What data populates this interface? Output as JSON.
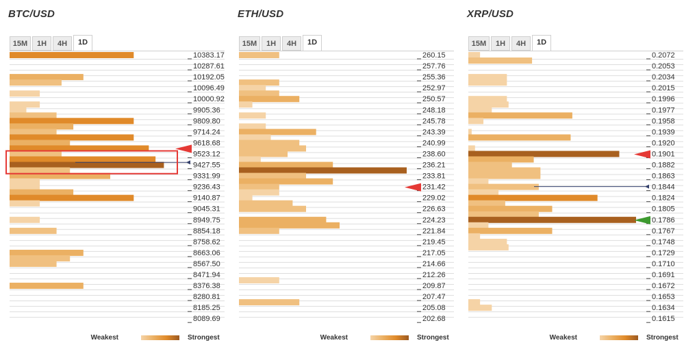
{
  "panels": [
    {
      "title": "BTC/USD",
      "tabs": [
        "15M",
        "1H",
        "4H",
        "1D"
      ],
      "active_tab": "1D",
      "legend": {
        "weakest": "Weakest",
        "strongest": "Strongest"
      }
    },
    {
      "title": "ETH/USD",
      "tabs": [
        "15M",
        "1H",
        "4H",
        "1D"
      ],
      "active_tab": "1D",
      "legend": {
        "weakest": "Weakest",
        "strongest": "Strongest"
      }
    },
    {
      "title": "XRP/USD",
      "tabs": [
        "15M",
        "1H",
        "4H",
        "1D"
      ],
      "active_tab": "1D",
      "legend": {
        "weakest": "Weakest",
        "strongest": "Strongest"
      }
    }
  ],
  "colors": {
    "weak": "#f5d3a6",
    "light": "#f0c080",
    "medium": "#ebb063",
    "strong": "#e08a2a",
    "strongest": "#a8601f",
    "grid": "#dddddd",
    "arrow_red": "#e53935",
    "arrow_green": "#3d9a2f",
    "highlight_box": "#e53935",
    "price_line": "#333f6b"
  },
  "chart_data": [
    {
      "type": "bar",
      "orientation": "horizontal",
      "title": "BTC/USD",
      "timeframe": "1D",
      "x_max": 10,
      "price_levels": [
        "10383.17",
        "10287.61",
        "10192.05",
        "10096.49",
        "10000.92",
        "9905.36",
        "9809.80",
        "9714.24",
        "9618.68",
        "9523.12",
        "9427.55",
        "9331.99",
        "9236.43",
        "9140.87",
        "9045.31",
        "8949.75",
        "8854.18",
        "8758.62",
        "8663.06",
        "8567.50",
        "8471.94",
        "8376.38",
        "8280.81",
        "8185.25",
        "8089.69"
      ],
      "bars": [
        {
          "level": 0,
          "value": 7.4,
          "strength": 4
        },
        {
          "level": 2,
          "value": 4.4,
          "strength": 3
        },
        {
          "level": 2.5,
          "value": 3.1,
          "strength": 2
        },
        {
          "level": 3.5,
          "value": 1.8,
          "strength": 1
        },
        {
          "level": 4.5,
          "value": 1.8,
          "strength": 1
        },
        {
          "level": 5,
          "value": 1.0,
          "strength": 1
        },
        {
          "level": 5.5,
          "value": 2.8,
          "strength": 2
        },
        {
          "level": 6,
          "value": 7.4,
          "strength": 4
        },
        {
          "level": 6.5,
          "value": 3.8,
          "strength": 3
        },
        {
          "level": 7,
          "value": 2.8,
          "strength": 2
        },
        {
          "level": 7.5,
          "value": 7.4,
          "strength": 4
        },
        {
          "level": 8,
          "value": 3.6,
          "strength": 3
        },
        {
          "level": 8.5,
          "value": 8.3,
          "strength": 4
        },
        {
          "level": 9,
          "value": 3.1,
          "strength": 2
        },
        {
          "level": 9.5,
          "value": 8.7,
          "strength": 4
        },
        {
          "level": 10,
          "value": 9.2,
          "strength": 5
        },
        {
          "level": 10.5,
          "value": 3.6,
          "strength": 2
        },
        {
          "level": 11,
          "value": 6.0,
          "strength": 3
        },
        {
          "level": 11.5,
          "value": 1.8,
          "strength": 1
        },
        {
          "level": 12,
          "value": 1.8,
          "strength": 1
        },
        {
          "level": 12.5,
          "value": 3.8,
          "strength": 3
        },
        {
          "level": 13,
          "value": 7.4,
          "strength": 4
        },
        {
          "level": 13.5,
          "value": 1.8,
          "strength": 1
        },
        {
          "level": 15,
          "value": 1.8,
          "strength": 1
        },
        {
          "level": 16,
          "value": 2.8,
          "strength": 2
        },
        {
          "level": 18,
          "value": 4.4,
          "strength": 3
        },
        {
          "level": 18.5,
          "value": 3.6,
          "strength": 2
        },
        {
          "level": 19,
          "value": 2.8,
          "strength": 2
        },
        {
          "level": 21,
          "value": 4.4,
          "strength": 3
        }
      ],
      "markers": [
        {
          "type": "arrow",
          "color": "red",
          "level": 8.5
        },
        {
          "type": "price_line",
          "level": 9.8
        },
        {
          "type": "highlight_box",
          "from_level": 9.25,
          "to_level": 10.7
        }
      ]
    },
    {
      "type": "bar",
      "orientation": "horizontal",
      "title": "ETH/USD",
      "timeframe": "1D",
      "x_max": 10,
      "price_levels": [
        "260.15",
        "257.76",
        "255.36",
        "252.97",
        "250.57",
        "248.18",
        "245.78",
        "243.39",
        "240.99",
        "238.60",
        "236.21",
        "233.81",
        "231.42",
        "229.02",
        "226.63",
        "224.23",
        "221.84",
        "219.45",
        "217.05",
        "214.66",
        "212.26",
        "209.87",
        "207.47",
        "205.08",
        "202.68"
      ],
      "bars": [
        {
          "level": 0,
          "value": 2.4,
          "strength": 2
        },
        {
          "level": 2.5,
          "value": 2.4,
          "strength": 2
        },
        {
          "level": 3,
          "value": 1.6,
          "strength": 1
        },
        {
          "level": 3.5,
          "value": 2.4,
          "strength": 2
        },
        {
          "level": 4,
          "value": 3.6,
          "strength": 3
        },
        {
          "level": 4.5,
          "value": 0.8,
          "strength": 1
        },
        {
          "level": 5.5,
          "value": 1.6,
          "strength": 1
        },
        {
          "level": 6.5,
          "value": 1.6,
          "strength": 1
        },
        {
          "level": 7,
          "value": 4.6,
          "strength": 3
        },
        {
          "level": 7.5,
          "value": 1.9,
          "strength": 1
        },
        {
          "level": 8,
          "value": 3.6,
          "strength": 2
        },
        {
          "level": 8.5,
          "value": 4.0,
          "strength": 2
        },
        {
          "level": 9,
          "value": 2.9,
          "strength": 2
        },
        {
          "level": 9.5,
          "value": 1.3,
          "strength": 1
        },
        {
          "level": 10,
          "value": 5.6,
          "strength": 3
        },
        {
          "level": 10.5,
          "value": 10.0,
          "strength": 5
        },
        {
          "level": 11,
          "value": 4.0,
          "strength": 2
        },
        {
          "level": 11.5,
          "value": 5.6,
          "strength": 3
        },
        {
          "level": 12,
          "value": 2.4,
          "strength": 2
        },
        {
          "level": 12.5,
          "value": 2.4,
          "strength": 1
        },
        {
          "level": 13,
          "value": 0.8,
          "strength": 1
        },
        {
          "level": 13.5,
          "value": 3.2,
          "strength": 2
        },
        {
          "level": 14,
          "value": 4.0,
          "strength": 2
        },
        {
          "level": 15,
          "value": 5.2,
          "strength": 3
        },
        {
          "level": 15.5,
          "value": 6.0,
          "strength": 3
        },
        {
          "level": 16,
          "value": 2.4,
          "strength": 2
        },
        {
          "level": 20.5,
          "value": 2.4,
          "strength": 1
        },
        {
          "level": 22.5,
          "value": 3.6,
          "strength": 2
        }
      ],
      "markers": [
        {
          "type": "arrow",
          "color": "red",
          "level": 12
        }
      ]
    },
    {
      "type": "bar",
      "orientation": "horizontal",
      "title": "XRP/USD",
      "timeframe": "1D",
      "x_max": 10,
      "price_levels": [
        "0.2072",
        "0.2053",
        "0.2034",
        "0.2015",
        "0.1996",
        "0.1977",
        "0.1958",
        "0.1939",
        "0.1920",
        "0.1901",
        "0.1882",
        "0.1863",
        "0.1844",
        "0.1824",
        "0.1805",
        "0.1786",
        "0.1767",
        "0.1748",
        "0.1729",
        "0.1710",
        "0.1691",
        "0.1672",
        "0.1653",
        "0.1634",
        "0.1615"
      ],
      "bars": [
        {
          "level": 0,
          "value": 0.7,
          "strength": 1
        },
        {
          "level": 0.5,
          "value": 3.8,
          "strength": 2
        },
        {
          "level": 2,
          "value": 2.3,
          "strength": 1
        },
        {
          "level": 2.5,
          "value": 2.3,
          "strength": 1
        },
        {
          "level": 4,
          "value": 2.3,
          "strength": 1
        },
        {
          "level": 4.5,
          "value": 2.4,
          "strength": 1
        },
        {
          "level": 5,
          "value": 1.4,
          "strength": 1
        },
        {
          "level": 5.5,
          "value": 6.2,
          "strength": 3
        },
        {
          "level": 6,
          "value": 0.9,
          "strength": 1
        },
        {
          "level": 7,
          "value": 0.2,
          "strength": 1
        },
        {
          "level": 7.5,
          "value": 6.1,
          "strength": 3
        },
        {
          "level": 8.5,
          "value": 0.4,
          "strength": 1
        },
        {
          "level": 9,
          "value": 9.0,
          "strength": 5
        },
        {
          "level": 9.5,
          "value": 3.9,
          "strength": 3
        },
        {
          "level": 10,
          "value": 2.6,
          "strength": 2
        },
        {
          "level": 10.5,
          "value": 4.3,
          "strength": 2
        },
        {
          "level": 11,
          "value": 4.3,
          "strength": 2
        },
        {
          "level": 11.5,
          "value": 1.2,
          "strength": 1
        },
        {
          "level": 12,
          "value": 4.2,
          "strength": 2
        },
        {
          "level": 12.5,
          "value": 1.8,
          "strength": 1
        },
        {
          "level": 13,
          "value": 7.7,
          "strength": 4
        },
        {
          "level": 13.5,
          "value": 2.2,
          "strength": 2
        },
        {
          "level": 14,
          "value": 5.0,
          "strength": 3
        },
        {
          "level": 14.5,
          "value": 4.2,
          "strength": 2
        },
        {
          "level": 15,
          "value": 10.0,
          "strength": 5
        },
        {
          "level": 15.5,
          "value": 1.2,
          "strength": 1
        },
        {
          "level": 16,
          "value": 5.0,
          "strength": 3
        },
        {
          "level": 16.5,
          "value": 0.7,
          "strength": 1
        },
        {
          "level": 17,
          "value": 2.3,
          "strength": 1
        },
        {
          "level": 17.5,
          "value": 2.4,
          "strength": 1
        },
        {
          "level": 22.5,
          "value": 0.7,
          "strength": 1
        },
        {
          "level": 23,
          "value": 1.4,
          "strength": 1
        }
      ],
      "markers": [
        {
          "type": "arrow",
          "color": "red",
          "level": 9
        },
        {
          "type": "price_line",
          "level": 12
        },
        {
          "type": "arrow",
          "color": "green",
          "level": 15
        }
      ]
    }
  ]
}
